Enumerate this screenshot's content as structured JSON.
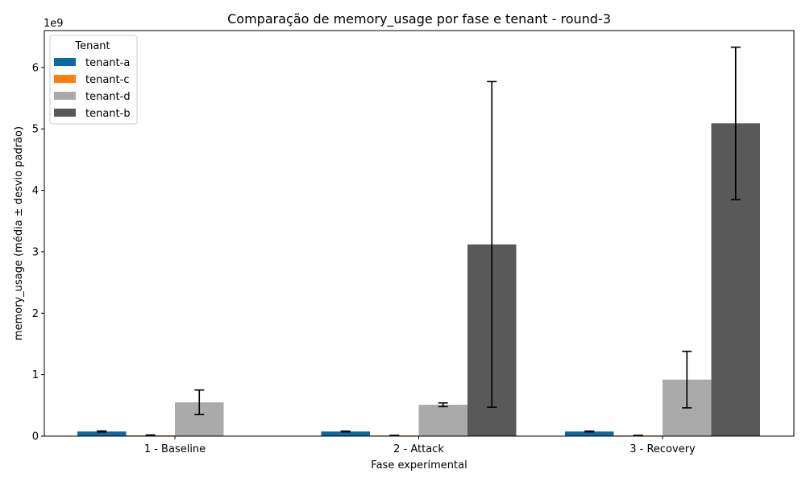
{
  "chart_data": {
    "type": "bar",
    "title": "Comparação de memory_usage por fase e tenant - round-3",
    "xlabel": "Fase experimental",
    "ylabel": "memory_usage (média ± desvio padrão)",
    "y_offset_label": "1e9",
    "y_scale": 1000000000,
    "ylim": [
      0,
      6.6
    ],
    "yticks": [
      0,
      1,
      2,
      3,
      4,
      5,
      6
    ],
    "categories": [
      "1 - Baseline",
      "2 - Attack",
      "3 - Recovery"
    ],
    "legend": {
      "title": "Tenant",
      "position": "upper-left"
    },
    "grid": false,
    "series": [
      {
        "name": "tenant-a",
        "color": "#0a6aa6",
        "values": [
          0.075,
          0.075,
          0.075
        ],
        "errors": [
          0.008,
          0.006,
          0.006
        ]
      },
      {
        "name": "tenant-c",
        "color": "#ff7f0e",
        "values": [
          0.012,
          0.01,
          0.01
        ],
        "errors": [
          0.006,
          0.002,
          0.002
        ]
      },
      {
        "name": "tenant-d",
        "color": "#aaaaaa",
        "values": [
          0.55,
          0.51,
          0.92
        ],
        "errors": [
          0.2,
          0.03,
          0.46
        ]
      },
      {
        "name": "tenant-b",
        "color": "#595959",
        "values": [
          null,
          3.12,
          5.09
        ],
        "errors": [
          null,
          2.65,
          1.24
        ]
      }
    ]
  }
}
